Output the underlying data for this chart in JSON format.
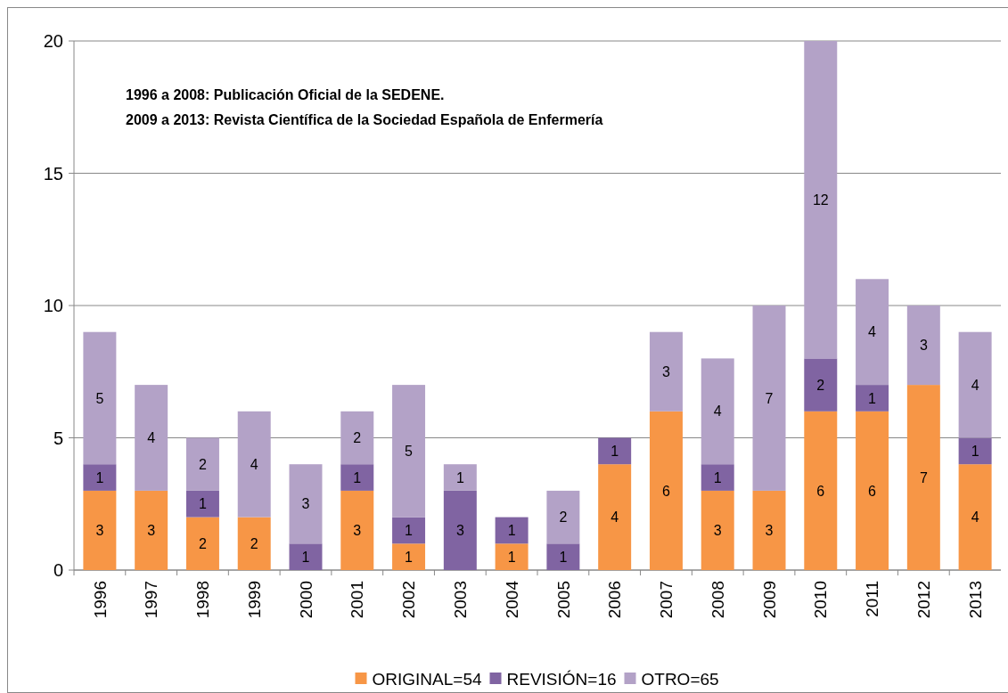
{
  "chart_data": {
    "type": "bar",
    "stacked": true,
    "categories": [
      "1996",
      "1997",
      "1998",
      "1999",
      "2000",
      "2001",
      "2002",
      "2003",
      "2004",
      "2005",
      "2006",
      "2007",
      "2008",
      "2009",
      "2010",
      "2011",
      "2012",
      "2013"
    ],
    "series": [
      {
        "name": "ORIGINAL=54",
        "color": "#f79646",
        "values": [
          3,
          3,
          2,
          2,
          null,
          3,
          1,
          null,
          1,
          null,
          4,
          6,
          3,
          3,
          6,
          6,
          7,
          4
        ]
      },
      {
        "name": "REVISIÓN=16",
        "color": "#8064a2",
        "values": [
          1,
          null,
          1,
          null,
          1,
          1,
          1,
          3,
          1,
          1,
          1,
          null,
          1,
          null,
          2,
          1,
          null,
          1
        ]
      },
      {
        "name": "OTRO=65",
        "color": "#b3a2c7",
        "values": [
          5,
          4,
          2,
          4,
          3,
          2,
          5,
          1,
          null,
          2,
          null,
          3,
          4,
          7,
          12,
          4,
          3,
          4
        ]
      }
    ],
    "ylim": [
      0,
      20
    ],
    "yticks": [
      0,
      5,
      10,
      15,
      20
    ],
    "grid": "y",
    "legend": "bottom",
    "data_labels": true,
    "annotations": [
      "1996 a 2008: Publicación Oficial de la SEDENE.",
      "2009 a 2013: Revista Científica de la Sociedad Española de Enfermería"
    ]
  }
}
